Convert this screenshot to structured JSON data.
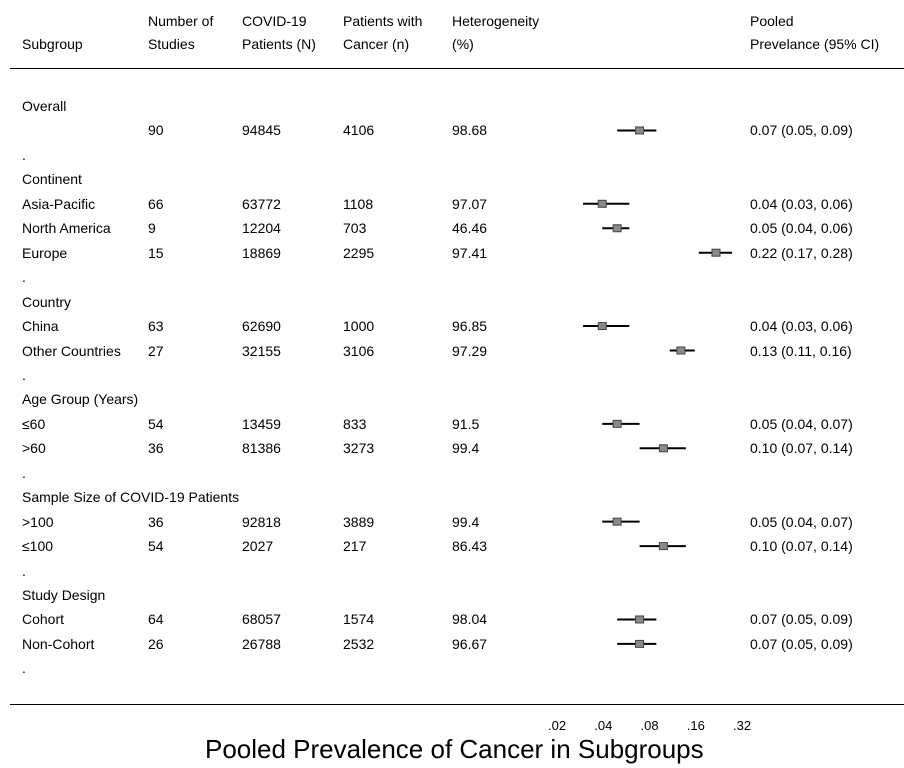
{
  "chart_data": {
    "type": "forest",
    "xlabel": "Pooled Prevalence of Cancer in Subgroups",
    "xscale": "log",
    "xlim": [
      0.02,
      0.32
    ],
    "xticks": [
      ".02",
      ".04",
      ".08",
      ".16",
      ".32"
    ],
    "columns": {
      "subgroup": "Subgroup",
      "studies": [
        "Number of",
        "Studies"
      ],
      "covid": [
        "COVID-19",
        "Patients (N)"
      ],
      "cancer": [
        "Patients with",
        "Cancer (n)"
      ],
      "het": [
        "Heterogeneity",
        "(%)"
      ],
      "pooled": [
        "Pooled",
        "Prevelance (95% CI)"
      ]
    },
    "rows": [
      {
        "type": "heading",
        "label": "Overall"
      },
      {
        "type": "data",
        "label": "",
        "studies": "90",
        "covid": "94845",
        "cancer": "4106",
        "het": "98.68",
        "est": 0.07,
        "lo": 0.05,
        "hi": 0.09,
        "ci_text": "0.07 (0.05, 0.09)"
      },
      {
        "type": "spacer",
        "label": "."
      },
      {
        "type": "heading",
        "label": "Continent"
      },
      {
        "type": "data",
        "label": "Asia-Pacific",
        "studies": "66",
        "covid": "63772",
        "cancer": "1108",
        "het": "97.07",
        "est": 0.04,
        "lo": 0.03,
        "hi": 0.06,
        "ci_text": "0.04 (0.03, 0.06)"
      },
      {
        "type": "data",
        "label": "North America",
        "studies": "9",
        "covid": "12204",
        "cancer": "703",
        "het": "46.46",
        "est": 0.05,
        "lo": 0.04,
        "hi": 0.06,
        "ci_text": "0.05 (0.04, 0.06)"
      },
      {
        "type": "data",
        "label": "Europe",
        "studies": "15",
        "covid": "18869",
        "cancer": "2295",
        "het": "97.41",
        "est": 0.22,
        "lo": 0.17,
        "hi": 0.28,
        "ci_text": "0.22 (0.17, 0.28)"
      },
      {
        "type": "spacer",
        "label": "."
      },
      {
        "type": "heading",
        "label": "Country"
      },
      {
        "type": "data",
        "label": "China",
        "studies": "63",
        "covid": "62690",
        "cancer": "1000",
        "het": "96.85",
        "est": 0.04,
        "lo": 0.03,
        "hi": 0.06,
        "ci_text": "0.04 (0.03, 0.06)"
      },
      {
        "type": "data",
        "label": "Other Countries",
        "studies": "27",
        "covid": "32155",
        "cancer": "3106",
        "het": "97.29",
        "est": 0.13,
        "lo": 0.11,
        "hi": 0.16,
        "ci_text": "0.13 (0.11, 0.16)"
      },
      {
        "type": "spacer",
        "label": "."
      },
      {
        "type": "heading",
        "label": "Age Group (Years)"
      },
      {
        "type": "data",
        "label": "≤60",
        "studies": "54",
        "covid": "13459",
        "cancer": "833",
        "het": "91.5",
        "est": 0.05,
        "lo": 0.04,
        "hi": 0.07,
        "ci_text": "0.05 (0.04, 0.07)"
      },
      {
        "type": "data",
        "label": ">60",
        "studies": "36",
        "covid": "81386",
        "cancer": "3273",
        "het": "99.4",
        "est": 0.1,
        "lo": 0.07,
        "hi": 0.14,
        "ci_text": "0.10 (0.07, 0.14)"
      },
      {
        "type": "spacer",
        "label": "."
      },
      {
        "type": "heading",
        "label": "Sample Size of COVID-19 Patients"
      },
      {
        "type": "data",
        "label": ">100",
        "studies": "36",
        "covid": "92818",
        "cancer": "3889",
        "het": "99.4",
        "est": 0.05,
        "lo": 0.04,
        "hi": 0.07,
        "ci_text": "0.05 (0.04, 0.07)"
      },
      {
        "type": "data",
        "label": "≤100",
        "studies": "54",
        "covid": "2027",
        "cancer": "217",
        "het": "86.43",
        "est": 0.1,
        "lo": 0.07,
        "hi": 0.14,
        "ci_text": "0.10 (0.07, 0.14)"
      },
      {
        "type": "spacer",
        "label": "."
      },
      {
        "type": "heading",
        "label": "Study Design"
      },
      {
        "type": "data",
        "label": "Cohort",
        "studies": "64",
        "covid": "68057",
        "cancer": "1574",
        "het": "98.04",
        "est": 0.07,
        "lo": 0.05,
        "hi": 0.09,
        "ci_text": "0.07 (0.05, 0.09)"
      },
      {
        "type": "data",
        "label": "Non-Cohort",
        "studies": "26",
        "covid": "26788",
        "cancer": "2532",
        "het": "96.67",
        "est": 0.07,
        "lo": 0.05,
        "hi": 0.09,
        "ci_text": "0.07 (0.05, 0.09)"
      },
      {
        "type": "spacer",
        "label": "."
      }
    ]
  }
}
